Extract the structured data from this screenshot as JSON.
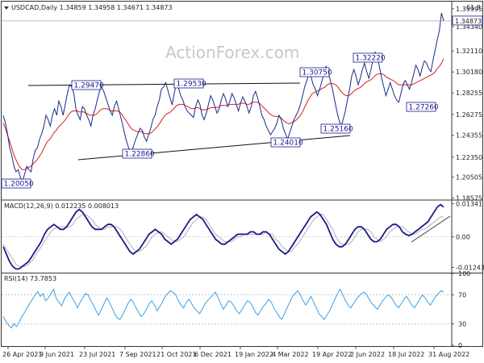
{
  "chart_data": [
    {
      "type": "line",
      "title": "USDCAD,Daily 1.34859 1.34958 1.34671 1.34873",
      "watermark": "ActionForex.com",
      "corner_label": "61.8",
      "current_price_label": "1.34873",
      "ylim": [
        1.1855,
        1.365
      ],
      "y_ticks": [
        "1.35995",
        "1.34340",
        "1.32110",
        "1.30180",
        "1.28255",
        "1.26275",
        "1.24355",
        "1.22350",
        "1.20505",
        "1.18575"
      ],
      "x_ticks": [
        "26 Apr 2021",
        "9 Jun 2021",
        "23 Jul 2021",
        "7 Sep 2021",
        "21 Oct 2021",
        "6 Dec 2021",
        "19 Jan 2022",
        "4 Mar 2022",
        "19 Apr 2022",
        "2 Jun 2022",
        "18 Jul 2022",
        "31 Aug 2022"
      ],
      "annotations": [
        "1.20050",
        "1.22860",
        "1.29470",
        "1.29530",
        "1.24010",
        "1.25160",
        "1.30750",
        "1.32220",
        "1.27260"
      ],
      "series": [
        {
          "values": [
            1.262,
            1.255,
            1.245,
            1.232,
            1.225,
            1.215,
            1.21,
            1.212,
            1.205,
            1.201,
            1.208,
            1.215,
            1.212,
            1.21,
            1.222,
            1.23,
            1.232,
            1.24,
            1.245,
            1.252,
            1.262,
            1.258,
            1.252,
            1.262,
            1.268,
            1.262,
            1.275,
            1.27,
            1.262,
            1.272,
            1.282,
            1.29,
            1.288,
            1.282,
            1.268,
            1.262,
            1.258,
            1.27,
            1.268,
            1.262,
            1.258,
            1.252,
            1.262,
            1.268,
            1.276,
            1.284,
            1.288,
            1.284,
            1.278,
            1.272,
            1.266,
            1.262,
            1.27,
            1.275,
            1.268,
            1.26,
            1.252,
            1.243,
            1.236,
            1.23,
            1.228,
            1.234,
            1.24,
            1.245,
            1.25,
            1.248,
            1.242,
            1.238,
            1.244,
            1.25,
            1.258,
            1.262,
            1.27,
            1.276,
            1.286,
            1.288,
            1.292,
            1.285,
            1.278,
            1.272,
            1.282,
            1.292,
            1.287,
            1.28,
            1.276,
            1.27,
            1.266,
            1.264,
            1.262,
            1.26,
            1.27,
            1.276,
            1.272,
            1.262,
            1.258,
            1.264,
            1.272,
            1.28,
            1.276,
            1.27,
            1.264,
            1.268,
            1.276,
            1.282,
            1.277,
            1.27,
            1.275,
            1.282,
            1.278,
            1.272,
            1.266,
            1.273,
            1.279,
            1.275,
            1.27,
            1.264,
            1.27,
            1.28,
            1.284,
            1.278,
            1.27,
            1.262,
            1.258,
            1.252,
            1.248,
            1.244,
            1.247,
            1.25,
            1.255,
            1.262,
            1.258,
            1.25,
            1.245,
            1.24,
            1.246,
            1.252,
            1.258,
            1.262,
            1.266,
            1.272,
            1.28,
            1.288,
            1.294,
            1.3,
            1.297,
            1.29,
            1.286,
            1.28,
            1.286,
            1.293,
            1.3,
            1.307,
            1.302,
            1.294,
            1.286,
            1.276,
            1.266,
            1.258,
            1.252,
            1.258,
            1.266,
            1.276,
            1.286,
            1.298,
            1.304,
            1.298,
            1.29,
            1.296,
            1.304,
            1.31,
            1.302,
            1.296,
            1.304,
            1.314,
            1.32,
            1.316,
            1.306,
            1.296,
            1.288,
            1.28,
            1.286,
            1.292,
            1.286,
            1.28,
            1.276,
            1.274,
            1.282,
            1.29,
            1.294,
            1.29,
            1.286,
            1.292,
            1.3,
            1.308,
            1.304,
            1.298,
            1.306,
            1.312,
            1.31,
            1.305,
            1.302,
            1.312,
            1.322,
            1.331,
            1.34,
            1.356,
            1.3487
          ]
        },
        {
          "values": [
            1.255,
            1.25,
            1.244,
            1.238,
            1.232,
            1.226,
            1.221,
            1.217,
            1.214,
            1.212,
            1.212,
            1.213,
            1.214,
            1.215,
            1.217,
            1.219,
            1.221,
            1.224,
            1.227,
            1.231,
            1.235,
            1.238,
            1.24,
            1.243,
            1.246,
            1.248,
            1.251,
            1.253,
            1.255,
            1.257,
            1.26,
            1.263,
            1.265,
            1.266,
            1.266,
            1.266,
            1.265,
            1.265,
            1.265,
            1.264,
            1.263,
            1.262,
            1.262,
            1.262,
            1.263,
            1.265,
            1.267,
            1.268,
            1.268,
            1.268,
            1.267,
            1.266,
            1.266,
            1.266,
            1.266,
            1.265,
            1.263,
            1.26,
            1.257,
            1.254,
            1.251,
            1.249,
            1.248,
            1.247,
            1.247,
            1.247,
            1.246,
            1.245,
            1.245,
            1.245,
            1.246,
            1.248,
            1.25,
            1.252,
            1.255,
            1.258,
            1.261,
            1.263,
            1.264,
            1.265,
            1.267,
            1.269,
            1.271,
            1.272,
            1.272,
            1.272,
            1.271,
            1.27,
            1.269,
            1.268,
            1.268,
            1.269,
            1.269,
            1.268,
            1.267,
            1.267,
            1.267,
            1.268,
            1.269,
            1.269,
            1.269,
            1.269,
            1.27,
            1.271,
            1.271,
            1.271,
            1.271,
            1.272,
            1.272,
            1.272,
            1.272,
            1.272,
            1.273,
            1.273,
            1.273,
            1.272,
            1.272,
            1.273,
            1.274,
            1.274,
            1.274,
            1.273,
            1.271,
            1.269,
            1.267,
            1.265,
            1.263,
            1.262,
            1.261,
            1.261,
            1.261,
            1.26,
            1.258,
            1.256,
            1.255,
            1.254,
            1.255,
            1.256,
            1.257,
            1.259,
            1.261,
            1.264,
            1.268,
            1.272,
            1.276,
            1.279,
            1.282,
            1.283,
            1.284,
            1.285,
            1.286,
            1.287,
            1.288,
            1.29,
            1.291,
            1.291,
            1.291,
            1.29,
            1.288,
            1.285,
            1.283,
            1.281,
            1.28,
            1.28,
            1.281,
            1.283,
            1.285,
            1.286,
            1.287,
            1.288,
            1.29,
            1.292,
            1.293,
            1.294,
            1.295,
            1.297,
            1.299,
            1.3,
            1.3,
            1.3,
            1.299,
            1.297,
            1.296,
            1.295,
            1.294,
            1.293,
            1.291,
            1.29,
            1.29,
            1.29,
            1.29,
            1.29,
            1.29,
            1.29,
            1.291,
            1.292,
            1.293,
            1.294,
            1.295,
            1.296,
            1.297,
            1.298,
            1.299,
            1.3,
            1.302,
            1.305,
            1.307,
            1.31,
            1.314
          ]
        }
      ]
    },
    {
      "type": "line",
      "title": "MACD(12,26,9) 0.012235 0.008013",
      "ylim": [
        -0.0145,
        0.0145
      ],
      "y_ticks": [
        "0.01341",
        "0.00",
        "-0.012432"
      ],
      "series": [
        {
          "values": [
            -0.004,
            -0.007,
            -0.01,
            -0.012,
            -0.013,
            -0.013,
            -0.012,
            -0.011,
            -0.01,
            -0.008,
            -0.006,
            -0.004,
            -0.002,
            0.001,
            0.003,
            0.004,
            0.005,
            0.004,
            0.003,
            0.003,
            0.004,
            0.006,
            0.008,
            0.01,
            0.011,
            0.01,
            0.008,
            0.006,
            0.004,
            0.003,
            0.003,
            0.003,
            0.004,
            0.005,
            0.005,
            0.004,
            0.002,
            0.0,
            -0.002,
            -0.004,
            -0.006,
            -0.007,
            -0.006,
            -0.005,
            -0.003,
            -0.001,
            0.001,
            0.002,
            0.003,
            0.002,
            0.001,
            -0.001,
            -0.002,
            -0.003,
            -0.002,
            -0.001,
            0.001,
            0.003,
            0.005,
            0.007,
            0.008,
            0.009,
            0.008,
            0.007,
            0.005,
            0.003,
            0.001,
            -0.001,
            -0.002,
            -0.003,
            -0.003,
            -0.002,
            -0.001,
            0.0,
            0.001,
            0.001,
            0.001,
            0.001,
            0.002,
            0.002,
            0.001,
            0.001,
            0.002,
            0.002,
            0.001,
            -0.001,
            -0.003,
            -0.005,
            -0.006,
            -0.007,
            -0.006,
            -0.004,
            -0.002,
            0.0,
            0.002,
            0.004,
            0.006,
            0.008,
            0.009,
            0.01,
            0.009,
            0.007,
            0.005,
            0.002,
            -0.001,
            -0.003,
            -0.004,
            -0.004,
            -0.003,
            -0.001,
            0.001,
            0.003,
            0.004,
            0.004,
            0.003,
            0.001,
            -0.001,
            -0.002,
            -0.002,
            -0.001,
            0.001,
            0.003,
            0.004,
            0.005,
            0.005,
            0.004,
            0.002,
            0.001,
            0.0005,
            0.001,
            0.002,
            0.003,
            0.004,
            0.005,
            0.006,
            0.008,
            0.01,
            0.012,
            0.013,
            0.012
          ]
        },
        {
          "values": [
            -0.003,
            -0.005,
            -0.007,
            -0.009,
            -0.011,
            -0.012,
            -0.012,
            -0.012,
            -0.011,
            -0.01,
            -0.008,
            -0.006,
            -0.004,
            -0.002,
            0.0,
            0.002,
            0.003,
            0.004,
            0.004,
            0.004,
            0.004,
            0.004,
            0.005,
            0.007,
            0.008,
            0.009,
            0.009,
            0.008,
            0.007,
            0.005,
            0.004,
            0.003,
            0.003,
            0.004,
            0.004,
            0.004,
            0.004,
            0.003,
            0.001,
            -0.001,
            -0.003,
            -0.005,
            -0.006,
            -0.006,
            -0.005,
            -0.004,
            -0.002,
            0.0,
            0.001,
            0.002,
            0.002,
            0.001,
            0.0,
            -0.001,
            -0.002,
            -0.002,
            -0.001,
            0.0,
            0.002,
            0.004,
            0.006,
            0.007,
            0.008,
            0.008,
            0.007,
            0.005,
            0.003,
            0.001,
            0.0,
            -0.001,
            -0.002,
            -0.002,
            -0.002,
            -0.001,
            0.0,
            0.0,
            0.001,
            0.001,
            0.001,
            0.001,
            0.001,
            0.001,
            0.001,
            0.002,
            0.001,
            0.001,
            -0.001,
            -0.002,
            -0.004,
            -0.005,
            -0.006,
            -0.006,
            -0.004,
            -0.003,
            -0.001,
            0.001,
            0.003,
            0.005,
            0.007,
            0.008,
            0.009,
            0.009,
            0.007,
            0.005,
            0.003,
            0.0,
            -0.002,
            -0.003,
            -0.003,
            -0.003,
            -0.002,
            0.0,
            0.002,
            0.003,
            0.003,
            0.003,
            0.002,
            0.0,
            -0.001,
            -0.002,
            -0.001,
            0.0,
            0.002,
            0.003,
            0.004,
            0.004,
            0.004,
            0.003,
            0.002,
            0.001,
            0.001,
            0.002,
            0.003,
            0.003,
            0.004,
            0.005,
            0.006,
            0.007,
            0.008,
            0.008
          ]
        }
      ]
    },
    {
      "type": "line",
      "title": "RSI(14) 73.7853",
      "ylim": [
        0,
        100
      ],
      "y_ticks": [
        "100",
        "70",
        "30",
        "0"
      ],
      "series": [
        {
          "values": [
            40,
            33,
            28,
            24,
            30,
            26,
            32,
            40,
            45,
            52,
            58,
            64,
            70,
            75,
            68,
            72,
            62,
            66,
            72,
            78,
            65,
            60,
            55,
            64,
            70,
            74,
            66,
            60,
            52,
            60,
            66,
            72,
            70,
            62,
            56,
            48,
            42,
            50,
            58,
            66,
            60,
            52,
            44,
            38,
            36,
            42,
            50,
            58,
            64,
            60,
            52,
            46,
            40,
            44,
            50,
            58,
            62,
            56,
            48,
            54,
            60,
            68,
            72,
            76,
            74,
            70,
            62,
            56,
            52,
            60,
            64,
            58,
            52,
            48,
            44,
            50,
            58,
            62,
            66,
            70,
            74,
            66,
            58,
            50,
            56,
            62,
            60,
            54,
            48,
            44,
            50,
            56,
            62,
            60,
            54,
            46,
            42,
            48,
            54,
            58,
            64,
            60,
            52,
            46,
            40,
            36,
            44,
            52,
            60,
            68,
            72,
            76,
            70,
            62,
            56,
            62,
            68,
            60,
            52,
            44,
            40,
            36,
            42,
            48,
            56,
            64,
            72,
            78,
            70,
            62,
            56,
            52,
            58,
            64,
            68,
            72,
            74,
            70,
            64,
            58,
            54,
            50,
            56,
            62,
            66,
            70,
            68,
            62,
            56,
            52,
            58,
            64,
            68,
            62,
            56,
            52,
            58,
            64,
            70,
            66,
            60,
            56,
            62,
            68,
            72,
            76,
            73.8
          ]
        }
      ]
    }
  ]
}
